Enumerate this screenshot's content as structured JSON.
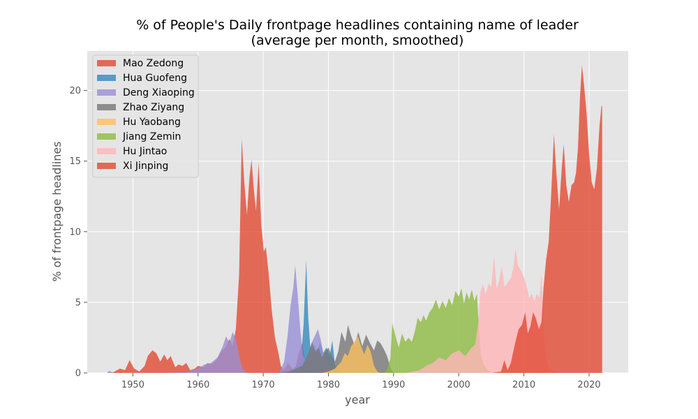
{
  "chart_data": {
    "type": "area",
    "title": "% of People's Daily frontpage headlines containing name of leader",
    "subtitle": "(average per month, smoothed)",
    "xlabel": "year",
    "ylabel": "% of frontpage headlines",
    "xlim": [
      1943,
      2026
    ],
    "ylim": [
      0,
      22.8
    ],
    "xticks": [
      1950,
      1960,
      1970,
      1980,
      1990,
      2000,
      2010,
      2020
    ],
    "yticks": [
      0,
      5,
      10,
      15,
      20
    ],
    "grid": true,
    "legend_position": "top-left",
    "series": [
      {
        "name": "Mao Zedong",
        "color": "#E24A33",
        "points": [
          [
            1946,
            0
          ],
          [
            1947,
            0.05
          ],
          [
            1948,
            0.3
          ],
          [
            1948.8,
            0.2
          ],
          [
            1949.5,
            0.9
          ],
          [
            1950.2,
            0.3
          ],
          [
            1951,
            0.1
          ],
          [
            1951.8,
            0.5
          ],
          [
            1952.3,
            1.2
          ],
          [
            1953,
            1.6
          ],
          [
            1953.6,
            1.4
          ],
          [
            1954.2,
            0.8
          ],
          [
            1954.8,
            1.3
          ],
          [
            1955.3,
            0.9
          ],
          [
            1955.8,
            1.2
          ],
          [
            1956.5,
            0.4
          ],
          [
            1957,
            0.6
          ],
          [
            1957.6,
            0.5
          ],
          [
            1958.2,
            0.7
          ],
          [
            1958.8,
            0.2
          ],
          [
            1959.5,
            0.3
          ],
          [
            1960,
            0.5
          ],
          [
            1960.8,
            0.4
          ],
          [
            1961.5,
            0.7
          ],
          [
            1962,
            0.6
          ],
          [
            1962.8,
            0.9
          ],
          [
            1963.5,
            1.5
          ],
          [
            1964.2,
            1.8
          ],
          [
            1964.8,
            2.4
          ],
          [
            1965.3,
            1.9
          ],
          [
            1965.8,
            3.1
          ],
          [
            1966.3,
            7
          ],
          [
            1966.7,
            16.6
          ],
          [
            1967.1,
            13.5
          ],
          [
            1967.5,
            11.2
          ],
          [
            1967.9,
            13.9
          ],
          [
            1968.2,
            15.1
          ],
          [
            1968.6,
            12.8
          ],
          [
            1968.9,
            11.5
          ],
          [
            1969.3,
            14.9
          ],
          [
            1969.7,
            10.5
          ],
          [
            1970.1,
            8.6
          ],
          [
            1970.4,
            8.9
          ],
          [
            1970.8,
            7.2
          ],
          [
            1971.3,
            4.5
          ],
          [
            1971.8,
            2.5
          ],
          [
            1972.3,
            1.5
          ],
          [
            1972.7,
            0.5
          ],
          [
            1973.2,
            0.2
          ],
          [
            1973.8,
            0.7
          ],
          [
            1974.3,
            0.4
          ],
          [
            1974.8,
            0.1
          ],
          [
            1975.5,
            1.5
          ],
          [
            1976,
            2.1
          ],
          [
            1976.5,
            0.6
          ],
          [
            1977,
            0.1
          ],
          [
            1978,
            0.05
          ],
          [
            1979,
            0
          ]
        ]
      },
      {
        "name": "Hua Guofeng",
        "color": "#348ABD",
        "points": [
          [
            1972,
            0
          ],
          [
            1973.5,
            0.1
          ],
          [
            1974.5,
            0.3
          ],
          [
            1975.3,
            0.5
          ],
          [
            1975.8,
            1
          ],
          [
            1976.2,
            3.5
          ],
          [
            1976.6,
            8
          ],
          [
            1976.9,
            4
          ],
          [
            1977.3,
            1.3
          ],
          [
            1977.8,
            2
          ],
          [
            1978.3,
            1.5
          ],
          [
            1978.7,
            2.2
          ],
          [
            1979.2,
            1.4
          ],
          [
            1979.7,
            1.8
          ],
          [
            1980.2,
            1.2
          ],
          [
            1980.6,
            2.3
          ],
          [
            1981,
            0.6
          ],
          [
            1981.5,
            0.2
          ],
          [
            1982,
            0
          ]
        ]
      },
      {
        "name": "Deng Xiaoping",
        "color": "#988ED5",
        "points": [
          [
            1946,
            0
          ],
          [
            1946.4,
            0.15
          ],
          [
            1947,
            0
          ],
          [
            1955,
            0
          ],
          [
            1958,
            0.05
          ],
          [
            1960,
            0.3
          ],
          [
            1961,
            0.6
          ],
          [
            1962,
            0.7
          ],
          [
            1963,
            1.1
          ],
          [
            1963.8,
            1.9
          ],
          [
            1964.3,
            2.6
          ],
          [
            1964.8,
            2.1
          ],
          [
            1965.3,
            2.9
          ],
          [
            1965.8,
            2.4
          ],
          [
            1966.3,
            1.2
          ],
          [
            1966.8,
            0.3
          ],
          [
            1967.5,
            0
          ],
          [
            1972.5,
            0
          ],
          [
            1973.2,
            0.8
          ],
          [
            1973.7,
            2.5
          ],
          [
            1974.2,
            4.8
          ],
          [
            1974.6,
            6
          ],
          [
            1974.9,
            7.6
          ],
          [
            1975.3,
            5.5
          ],
          [
            1975.7,
            3
          ],
          [
            1976.1,
            1.3
          ],
          [
            1976.5,
            0.8
          ],
          [
            1977,
            1.5
          ],
          [
            1977.5,
            2.2
          ],
          [
            1978,
            2.7
          ],
          [
            1978.4,
            3.1
          ],
          [
            1978.8,
            2.4
          ],
          [
            1979.2,
            1.5
          ],
          [
            1979.7,
            0.8
          ],
          [
            1980.3,
            0.4
          ],
          [
            1981,
            0.1
          ],
          [
            1982,
            0
          ]
        ]
      },
      {
        "name": "Zhao Ziyang",
        "color": "#777777",
        "points": [
          [
            1972,
            0
          ],
          [
            1974,
            0.1
          ],
          [
            1976,
            0.5
          ],
          [
            1977,
            1.5
          ],
          [
            1977.5,
            2.2
          ],
          [
            1978,
            1.5
          ],
          [
            1978.5,
            1.8
          ],
          [
            1979,
            1.1
          ],
          [
            1979.5,
            1.5
          ],
          [
            1980,
            1.8
          ],
          [
            1980.5,
            1.2
          ],
          [
            1981,
            0.8
          ],
          [
            1981.5,
            1.5
          ],
          [
            1982,
            2.9
          ],
          [
            1982.6,
            2.2
          ],
          [
            1983,
            3.4
          ],
          [
            1983.5,
            2.6
          ],
          [
            1984,
            2
          ],
          [
            1984.6,
            2.9
          ],
          [
            1985.2,
            1.9
          ],
          [
            1985.8,
            2.7
          ],
          [
            1986.4,
            2.1
          ],
          [
            1987,
            1.6
          ],
          [
            1987.5,
            2.3
          ],
          [
            1988,
            2.1
          ],
          [
            1988.5,
            1.7
          ],
          [
            1989,
            1.2
          ],
          [
            1989.5,
            0.4
          ],
          [
            1990,
            0
          ]
        ]
      },
      {
        "name": "Hu Yaobang",
        "color": "#FBC15E",
        "points": [
          [
            1979,
            0
          ],
          [
            1980,
            0.1
          ],
          [
            1981,
            0.3
          ],
          [
            1982,
            0.8
          ],
          [
            1982.5,
            1.4
          ],
          [
            1983,
            1.2
          ],
          [
            1983.5,
            1.9
          ],
          [
            1984,
            2.2
          ],
          [
            1984.5,
            2.6
          ],
          [
            1985,
            1.9
          ],
          [
            1985.5,
            1.3
          ],
          [
            1986,
            2
          ],
          [
            1986.5,
            1.5
          ],
          [
            1987,
            0.5
          ],
          [
            1987.5,
            0.1
          ],
          [
            1988,
            0
          ]
        ]
      },
      {
        "name": "Jiang Zemin",
        "color": "#8EBA42",
        "points": [
          [
            1988.5,
            0
          ],
          [
            1989,
            0.2
          ],
          [
            1989.5,
            1
          ],
          [
            1989.8,
            3.5
          ],
          [
            1990.3,
            2.6
          ],
          [
            1990.8,
            1.8
          ],
          [
            1991.3,
            2.8
          ],
          [
            1991.8,
            2.2
          ],
          [
            1992.3,
            2.5
          ],
          [
            1992.8,
            2.2
          ],
          [
            1993.3,
            3
          ],
          [
            1993.7,
            3.9
          ],
          [
            1994.2,
            3.6
          ],
          [
            1994.6,
            4.1
          ],
          [
            1995,
            3.7
          ],
          [
            1995.5,
            4.3
          ],
          [
            1996,
            4.6
          ],
          [
            1996.5,
            5.2
          ],
          [
            1997,
            4.5
          ],
          [
            1997.5,
            5.1
          ],
          [
            1998,
            4.6
          ],
          [
            1998.5,
            5.3
          ],
          [
            1999,
            4.8
          ],
          [
            1999.5,
            5.8
          ],
          [
            2000,
            5.4
          ],
          [
            2000.4,
            6
          ],
          [
            2000.8,
            4.9
          ],
          [
            2001.2,
            5.7
          ],
          [
            2001.6,
            5.2
          ],
          [
            2002,
            5.9
          ],
          [
            2002.4,
            5.1
          ],
          [
            2002.8,
            5.6
          ],
          [
            2003.1,
            3
          ],
          [
            2003.4,
            1.2
          ],
          [
            2003.8,
            0.6
          ],
          [
            2004.5,
            0.2
          ],
          [
            2005,
            0
          ]
        ]
      },
      {
        "name": "Hu Jintao",
        "color": "#FFB5B8",
        "points": [
          [
            1992,
            0
          ],
          [
            1994,
            0.2
          ],
          [
            1995,
            0.5
          ],
          [
            1996,
            0.7
          ],
          [
            1997,
            1.1
          ],
          [
            1998,
            0.9
          ],
          [
            1999,
            1.4
          ],
          [
            2000,
            1.6
          ],
          [
            2001,
            1.2
          ],
          [
            2001.8,
            1.7
          ],
          [
            2002.5,
            2
          ],
          [
            2003,
            3.5
          ],
          [
            2003.3,
            5.7
          ],
          [
            2003.7,
            6.3
          ],
          [
            2004.1,
            5.6
          ],
          [
            2004.6,
            6.3
          ],
          [
            2005,
            6.1
          ],
          [
            2005.4,
            8.3
          ],
          [
            2005.8,
            6
          ],
          [
            2006.2,
            6.5
          ],
          [
            2006.6,
            7.6
          ],
          [
            2007,
            6.1
          ],
          [
            2007.5,
            6.4
          ],
          [
            2008,
            6.7
          ],
          [
            2008.4,
            7.5
          ],
          [
            2008.7,
            8.8
          ],
          [
            2009.1,
            7.6
          ],
          [
            2009.5,
            7.3
          ],
          [
            2010,
            6.8
          ],
          [
            2010.4,
            6.2
          ],
          [
            2010.8,
            5.3
          ],
          [
            2011.2,
            5.6
          ],
          [
            2011.6,
            5.1
          ],
          [
            2012,
            5.6
          ],
          [
            2012.4,
            5.3
          ],
          [
            2012.7,
            7.1
          ],
          [
            2013,
            4
          ],
          [
            2013.3,
            1.2
          ],
          [
            2013.8,
            0.4
          ],
          [
            2014.5,
            0.1
          ],
          [
            2015.5,
            0
          ]
        ]
      },
      {
        "name": "Xi Jinping",
        "color": "#E24A33",
        "points": [
          [
            2005,
            0
          ],
          [
            2006.5,
            0.1
          ],
          [
            2007,
            0.9
          ],
          [
            2007.5,
            0.2
          ],
          [
            2008,
            0.7
          ],
          [
            2008.4,
            1.6
          ],
          [
            2008.8,
            2.4
          ],
          [
            2009.2,
            3.1
          ],
          [
            2009.7,
            3.4
          ],
          [
            2010.2,
            4.3
          ],
          [
            2010.6,
            2.8
          ],
          [
            2011,
            3.3
          ],
          [
            2011.4,
            4.3
          ],
          [
            2011.8,
            3.9
          ],
          [
            2012.3,
            3.1
          ],
          [
            2012.7,
            3.6
          ],
          [
            2013,
            6
          ],
          [
            2013.4,
            8
          ],
          [
            2013.8,
            9.3
          ],
          [
            2014.2,
            12.8
          ],
          [
            2014.6,
            16.9
          ],
          [
            2015,
            14
          ],
          [
            2015.4,
            11.6
          ],
          [
            2015.8,
            14.5
          ],
          [
            2016.1,
            16.2
          ],
          [
            2016.5,
            13.3
          ],
          [
            2016.9,
            12.1
          ],
          [
            2017.3,
            13.3
          ],
          [
            2017.7,
            13.5
          ],
          [
            2018,
            14.2
          ],
          [
            2018.3,
            16
          ],
          [
            2018.6,
            19.5
          ],
          [
            2018.9,
            21.8
          ],
          [
            2019.2,
            20.5
          ],
          [
            2019.6,
            18.5
          ],
          [
            2020,
            15.5
          ],
          [
            2020.4,
            13.5
          ],
          [
            2020.8,
            13
          ],
          [
            2021.2,
            14.5
          ],
          [
            2021.6,
            17.5
          ],
          [
            2021.9,
            18.9
          ],
          [
            2022,
            18.9
          ],
          [
            2022,
            0
          ]
        ]
      }
    ]
  }
}
